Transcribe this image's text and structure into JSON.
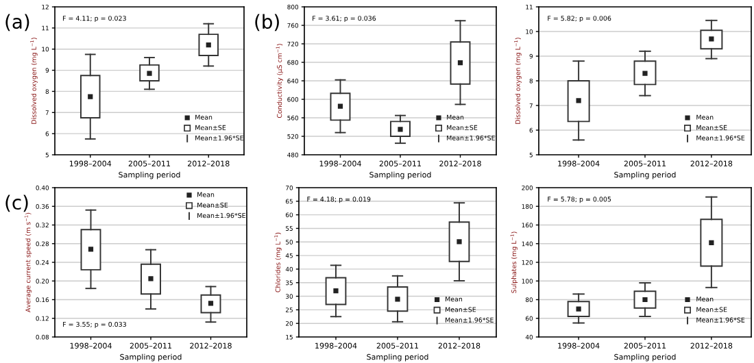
{
  "chart_data": [
    {
      "type": "box",
      "title": "(a)",
      "xlabel": "Sampling period",
      "ylabel": "Dissolved oxygen (mg L$^{−1}$)",
      "categories": [
        "1998–2004",
        "2005–2011",
        "2012–2018"
      ],
      "ylim": [
        5,
        12
      ],
      "yticks": [
        5,
        6,
        7,
        8,
        9,
        10,
        11,
        12
      ],
      "grid": "y",
      "marker": "square",
      "boxes": [
        {
          "low": 5.75,
          "q1": 6.75,
          "median": 7.75,
          "q3": 8.75,
          "high": 9.75
        },
        {
          "low": 8.1,
          "q1": 8.5,
          "median": 8.85,
          "q3": 9.25,
          "high": 9.6
        },
        {
          "low": 9.2,
          "q1": 9.7,
          "median": 10.2,
          "q3": 10.7,
          "high": 11.2
        }
      ],
      "annotations": [
        "F = 4.11; p = 0.023",
        "Mean",
        "Mean±SE",
        "Mean±1.96*SE"
      ]
    },
    {
      "type": "box",
      "title": "(b)",
      "xlabel": "Sampling period",
      "ylabel": "Conductivity (µS cm$^{−1}$)",
      "categories": [
        "1998–2004",
        "2005–2011",
        "2012–2018"
      ],
      "ylim": [
        480,
        800
      ],
      "yticks": [
        480,
        520,
        560,
        600,
        640,
        680,
        720,
        760,
        800
      ],
      "grid": "y",
      "marker": "square",
      "boxes": [
        {
          "low": 528,
          "q1": 555,
          "median": 585,
          "q3": 613,
          "high": 642
        },
        {
          "low": 505,
          "q1": 520,
          "median": 535,
          "q3": 552,
          "high": 565
        },
        {
          "low": 589,
          "q1": 633,
          "median": 679,
          "q3": 724,
          "high": 770
        }
      ],
      "annotations": [
        "F = 3.61; p = 0.036",
        "Mean",
        "Mean±SE",
        "Mean±1.96*SE"
      ]
    },
    {
      "type": "box",
      "xlabel": "Sampling period",
      "ylabel": "Dissolved oxygen (mg L$^{−1}$)",
      "categories": [
        "1998–2004",
        "2005–2011",
        "2012–2018"
      ],
      "ylim": [
        5,
        11
      ],
      "yticks": [
        5,
        6,
        7,
        8,
        9,
        10,
        11
      ],
      "grid": "y",
      "marker": "square",
      "boxes": [
        {
          "low": 5.6,
          "q1": 6.35,
          "median": 7.2,
          "q3": 8.0,
          "high": 8.8
        },
        {
          "low": 7.4,
          "q1": 7.85,
          "median": 8.3,
          "q3": 8.8,
          "high": 9.2
        },
        {
          "low": 8.9,
          "q1": 9.3,
          "median": 9.7,
          "q3": 10.05,
          "high": 10.45
        }
      ],
      "annotations": [
        "F = 5.82; p = 0.006",
        "Mean",
        "Mean±SE",
        "Mean±1.96*SE"
      ]
    },
    {
      "type": "box",
      "title": "(c)",
      "xlabel": "Sampling period",
      "ylabel": "Average current speed (m s$^{−1}$)",
      "categories": [
        "1998–2004",
        "2005–2011",
        "2012–2018"
      ],
      "ylim": [
        0.08,
        0.4
      ],
      "yticks": [
        {
          "value": 0.08,
          "label": "0.08"
        },
        {
          "value": 0.12,
          "label": "0.12"
        },
        {
          "value": 0.16,
          "label": "0.16"
        },
        {
          "value": 0.2,
          "label": "0.20"
        },
        {
          "value": 0.24,
          "label": "0.24"
        },
        {
          "value": 0.28,
          "label": "0.28"
        },
        {
          "value": 0.32,
          "label": "0.32"
        },
        {
          "value": 0.36,
          "label": "0.36"
        },
        {
          "value": 0.4,
          "label": "0.40"
        }
      ],
      "grid": "y",
      "marker": "square",
      "boxes": [
        {
          "low": 0.184,
          "q1": 0.224,
          "median": 0.268,
          "q3": 0.31,
          "high": 0.352
        },
        {
          "low": 0.14,
          "q1": 0.172,
          "median": 0.205,
          "q3": 0.236,
          "high": 0.267
        },
        {
          "low": 0.112,
          "q1": 0.132,
          "median": 0.152,
          "q3": 0.17,
          "high": 0.188
        }
      ],
      "annotations": [
        "F = 3.55; p = 0.033",
        "Mean",
        "Mean±SE",
        "Mean±1.96*SE"
      ]
    },
    {
      "type": "box",
      "xlabel": "Sampling period",
      "ylabel": "Chlorides (mg L$^{−1}$)",
      "categories": [
        "1998–2004",
        "2005–2011",
        "2012–2018"
      ],
      "ylim": [
        15,
        70
      ],
      "yticks": [
        15,
        20,
        25,
        30,
        35,
        40,
        45,
        50,
        55,
        60,
        65,
        70
      ],
      "grid": "y",
      "marker": "square",
      "boxes": [
        {
          "low": 22.5,
          "q1": 27,
          "median": 32,
          "q3": 36.8,
          "high": 41.4
        },
        {
          "low": 20.6,
          "q1": 24.5,
          "median": 28.9,
          "q3": 33.4,
          "high": 37.5
        },
        {
          "low": 35.7,
          "q1": 42.8,
          "median": 50.1,
          "q3": 57.3,
          "high": 64.4
        }
      ],
      "annotations": [
        "F = 4.18; p = 0.019",
        "Mean",
        "Mean±SE",
        "Mean±1.96*SE"
      ]
    },
    {
      "type": "box",
      "xlabel": "Sampling period",
      "ylabel": "Sulphates (mg L$^{−1}$)",
      "categories": [
        "1998–2004",
        "2005–2011",
        "2012–2018"
      ],
      "ylim": [
        40,
        200
      ],
      "yticks": [
        40,
        60,
        80,
        100,
        120,
        140,
        160,
        180,
        200
      ],
      "grid": "y",
      "marker": "square",
      "boxes": [
        {
          "low": 55,
          "q1": 62,
          "median": 70,
          "q3": 78,
          "high": 86
        },
        {
          "low": 62,
          "q1": 71,
          "median": 80,
          "q3": 89,
          "high": 98
        },
        {
          "low": 93,
          "q1": 116,
          "median": 141,
          "q3": 166,
          "high": 190
        }
      ],
      "annotations": [
        "F = 5.78; p = 0.005",
        "Mean",
        "Mean±SE",
        "Mean±1.96*SE"
      ]
    }
  ]
}
